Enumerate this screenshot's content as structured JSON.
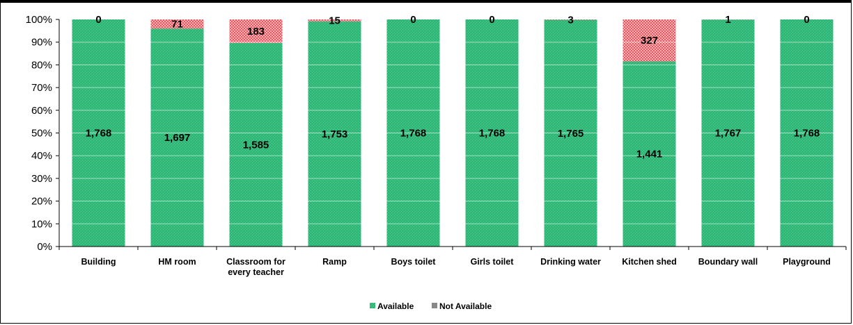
{
  "chart_data": {
    "type": "bar",
    "stacked": "percent",
    "title": "",
    "xlabel": "",
    "ylabel": "",
    "ylim": [
      0,
      100
    ],
    "y_ticks": [
      "0%",
      "10%",
      "20%",
      "30%",
      "40%",
      "50%",
      "60%",
      "70%",
      "80%",
      "90%",
      "100%"
    ],
    "grid": "horizontal",
    "legend_position": "bottom",
    "categories": [
      [
        "Building"
      ],
      [
        "HM room"
      ],
      [
        "Classroom for",
        "every teacher"
      ],
      [
        "Ramp"
      ],
      [
        "Boys toilet"
      ],
      [
        "Girls  toilet"
      ],
      [
        "Drinking water"
      ],
      [
        "Kitchen shed"
      ],
      [
        "Boundary wall"
      ],
      [
        "Playground"
      ]
    ],
    "series": [
      {
        "name": "Available",
        "color": "#2db877",
        "values": [
          1768,
          1697,
          1585,
          1753,
          1768,
          1768,
          1765,
          1441,
          1767,
          1768
        ],
        "labels": [
          "1,768",
          "1,697",
          "1,585",
          "1,753",
          "1,768",
          "1,768",
          "1,765",
          "1,441",
          "1,767",
          "1,768"
        ]
      },
      {
        "name": "Not Available",
        "color": "#e8575f",
        "values": [
          0,
          71,
          183,
          15,
          0,
          0,
          3,
          327,
          1,
          0
        ],
        "labels": [
          "0",
          "71",
          "183",
          "15",
          "0",
          "0",
          "3",
          "327",
          "1",
          "0"
        ]
      }
    ]
  }
}
